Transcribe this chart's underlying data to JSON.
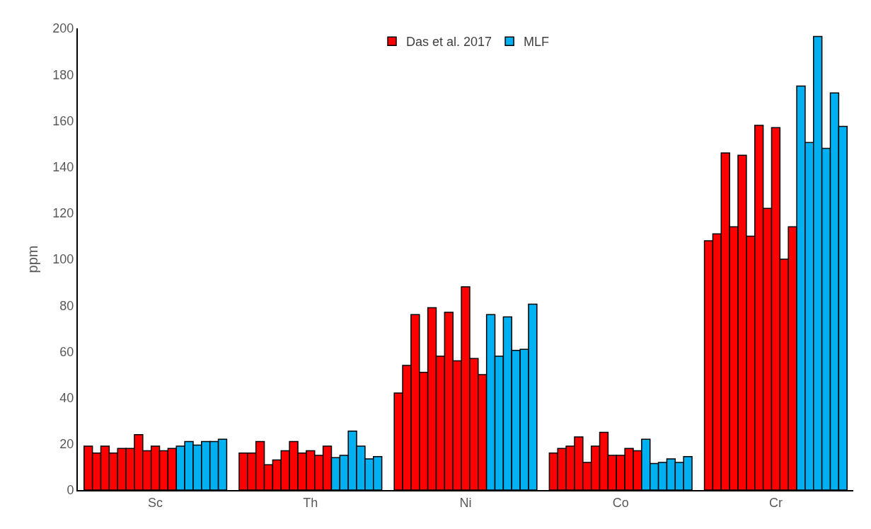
{
  "chart_data": {
    "type": "bar",
    "ylabel": "ppm",
    "categories": [
      "Sc",
      "Th",
      "Ni",
      "Co",
      "Cr"
    ],
    "ylim": [
      0,
      200
    ],
    "yticks": [
      0,
      20,
      40,
      60,
      80,
      100,
      120,
      140,
      160,
      180,
      200
    ],
    "legend": "top",
    "series": [
      {
        "name": "Das et al. 2017",
        "color": "#ff0000",
        "values": [
          19,
          16,
          42,
          16,
          108
        ]
      },
      {
        "color": "#ff0000",
        "values": [
          16,
          16,
          54,
          18,
          111
        ]
      },
      {
        "color": "#ff0000",
        "values": [
          19,
          21,
          76,
          19,
          146
        ]
      },
      {
        "color": "#ff0000",
        "values": [
          16,
          11,
          51,
          23,
          114
        ]
      },
      {
        "color": "#ff0000",
        "values": [
          18,
          13,
          79,
          12,
          145
        ]
      },
      {
        "color": "#ff0000",
        "values": [
          18,
          17,
          58,
          19,
          110
        ]
      },
      {
        "color": "#ff0000",
        "values": [
          24,
          21,
          77,
          25,
          158
        ]
      },
      {
        "color": "#ff0000",
        "values": [
          17,
          16,
          56,
          15,
          122
        ]
      },
      {
        "color": "#ff0000",
        "values": [
          19,
          17,
          88,
          15,
          157
        ]
      },
      {
        "color": "#ff0000",
        "values": [
          17,
          15,
          57,
          18,
          100
        ]
      },
      {
        "color": "#ff0000",
        "values": [
          18,
          19,
          50,
          17,
          114
        ]
      },
      {
        "name": "MLF",
        "color": "#00b0f0",
        "values": [
          19,
          14,
          76,
          22,
          175
        ]
      },
      {
        "color": "#00b0f0",
        "values": [
          21,
          15,
          58,
          11.5,
          150.5
        ]
      },
      {
        "color": "#00b0f0",
        "values": [
          19.5,
          25.5,
          75,
          12,
          196.5
        ]
      },
      {
        "color": "#00b0f0",
        "values": [
          21,
          19,
          60.5,
          13.5,
          148
        ]
      },
      {
        "color": "#00b0f0",
        "values": [
          21,
          13.5,
          61,
          12,
          172
        ]
      },
      {
        "color": "#00b0f0",
        "values": [
          22,
          14.5,
          80.5,
          14.5,
          157.5
        ]
      }
    ]
  }
}
